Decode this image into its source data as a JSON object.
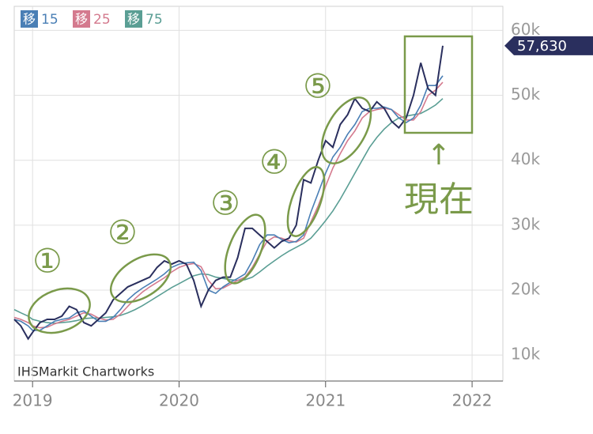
{
  "chart_data": {
    "type": "line",
    "x": [
      2018.875,
      2018.92,
      2018.97,
      2019.0,
      2019.05,
      2019.1,
      2019.15,
      2019.2,
      2019.25,
      2019.3,
      2019.35,
      2019.4,
      2019.45,
      2019.5,
      2019.55,
      2019.6,
      2019.65,
      2019.7,
      2019.75,
      2019.8,
      2019.85,
      2019.9,
      2019.95,
      2020.0,
      2020.05,
      2020.1,
      2020.15,
      2020.2,
      2020.25,
      2020.3,
      2020.35,
      2020.4,
      2020.45,
      2020.5,
      2020.55,
      2020.6,
      2020.65,
      2020.7,
      2020.75,
      2020.8,
      2020.85,
      2020.9,
      2020.95,
      2021.0,
      2021.05,
      2021.1,
      2021.15,
      2021.2,
      2021.25,
      2021.3,
      2021.35,
      2021.4,
      2021.45,
      2021.5,
      2021.55,
      2021.6,
      2021.65,
      2021.7,
      2021.75,
      2021.8
    ],
    "values": [
      15500,
      14500,
      12500,
      13500,
      15000,
      15500,
      15500,
      16000,
      17500,
      17000,
      15000,
      14500,
      15500,
      16500,
      18500,
      19500,
      20500,
      21000,
      21500,
      22000,
      23500,
      24500,
      24000,
      24500,
      24000,
      21500,
      17500,
      20000,
      21500,
      22000,
      22000,
      25000,
      29500,
      29500,
      28500,
      27500,
      26500,
      27500,
      28000,
      30000,
      37000,
      36500,
      40000,
      43000,
      42000,
      45500,
      47000,
      49500,
      48000,
      47500,
      49000,
      48000,
      46000,
      45000,
      46500,
      50000,
      55000,
      51000,
      50000,
      57630
    ],
    "color": "#2a2f5e",
    "legend_prefix": "移",
    "series": [
      {
        "name": "15",
        "color": "#4a7fb5",
        "values": [
          15500,
          15200,
          14500,
          13800,
          13800,
          14500,
          15200,
          15500,
          15700,
          16500,
          16800,
          16000,
          15200,
          15200,
          15800,
          17000,
          18500,
          19500,
          20300,
          21000,
          21700,
          22500,
          23500,
          24000,
          24200,
          24300,
          23000,
          20000,
          19500,
          20500,
          21200,
          21800,
          22500,
          24500,
          27000,
          28500,
          28500,
          27800,
          27300,
          27500,
          28500,
          32000,
          35000,
          38000,
          40500,
          42000,
          44000,
          45500,
          47500,
          48000,
          48000,
          48200,
          47800,
          46500,
          45800,
          46500,
          48500,
          51500,
          51500,
          53000
        ]
      },
      {
        "name": "25",
        "color": "#d47a8e",
        "values": [
          15800,
          15500,
          15000,
          14500,
          14200,
          14300,
          14800,
          15200,
          15500,
          16000,
          16500,
          16300,
          15700,
          15400,
          15500,
          16300,
          17500,
          18700,
          19700,
          20500,
          21200,
          21900,
          22800,
          23500,
          23900,
          24100,
          23600,
          21500,
          20200,
          20300,
          20900,
          21500,
          22000,
          23500,
          25500,
          27500,
          28200,
          28000,
          27600,
          27400,
          28000,
          30500,
          33000,
          36000,
          38800,
          41000,
          43000,
          44500,
          46500,
          47500,
          47800,
          48000,
          47800,
          47000,
          46200,
          46200,
          47500,
          50000,
          50800,
          52000
        ]
      },
      {
        "name": "75",
        "color": "#5a9e94",
        "values": [
          17000,
          16500,
          16000,
          15500,
          15200,
          15000,
          14900,
          15000,
          15100,
          15300,
          15600,
          15700,
          15700,
          15800,
          15900,
          16100,
          16500,
          17000,
          17600,
          18300,
          19000,
          19700,
          20400,
          21000,
          21600,
          22200,
          22500,
          22400,
          22000,
          21800,
          21600,
          21500,
          21600,
          22000,
          22800,
          23700,
          24500,
          25300,
          26000,
          26600,
          27200,
          28000,
          29300,
          30700,
          32200,
          34000,
          36000,
          38000,
          40000,
          42000,
          43500,
          44800,
          45800,
          46500,
          46800,
          47000,
          47200,
          47800,
          48500,
          49500
        ]
      }
    ],
    "xlim": [
      2018.875,
      2022.21
    ],
    "xticks": [
      2019,
      2020,
      2021,
      2022
    ],
    "ylim": [
      6000,
      63700
    ],
    "yticks": [
      {
        "value": 10000,
        "label": "10k"
      },
      {
        "value": 20000,
        "label": "20k"
      },
      {
        "value": 30000,
        "label": "30k"
      },
      {
        "value": 40000,
        "label": "40k"
      },
      {
        "value": 50000,
        "label": "50k"
      },
      {
        "value": 60000,
        "label": "60k"
      }
    ],
    "grid": true,
    "last_value": 57630,
    "last_value_label": "57,630",
    "source": "IHSMarkit Chartworks",
    "annotations": [
      "①",
      "②",
      "③",
      "④",
      "⑤",
      "↑",
      "現在"
    ]
  }
}
